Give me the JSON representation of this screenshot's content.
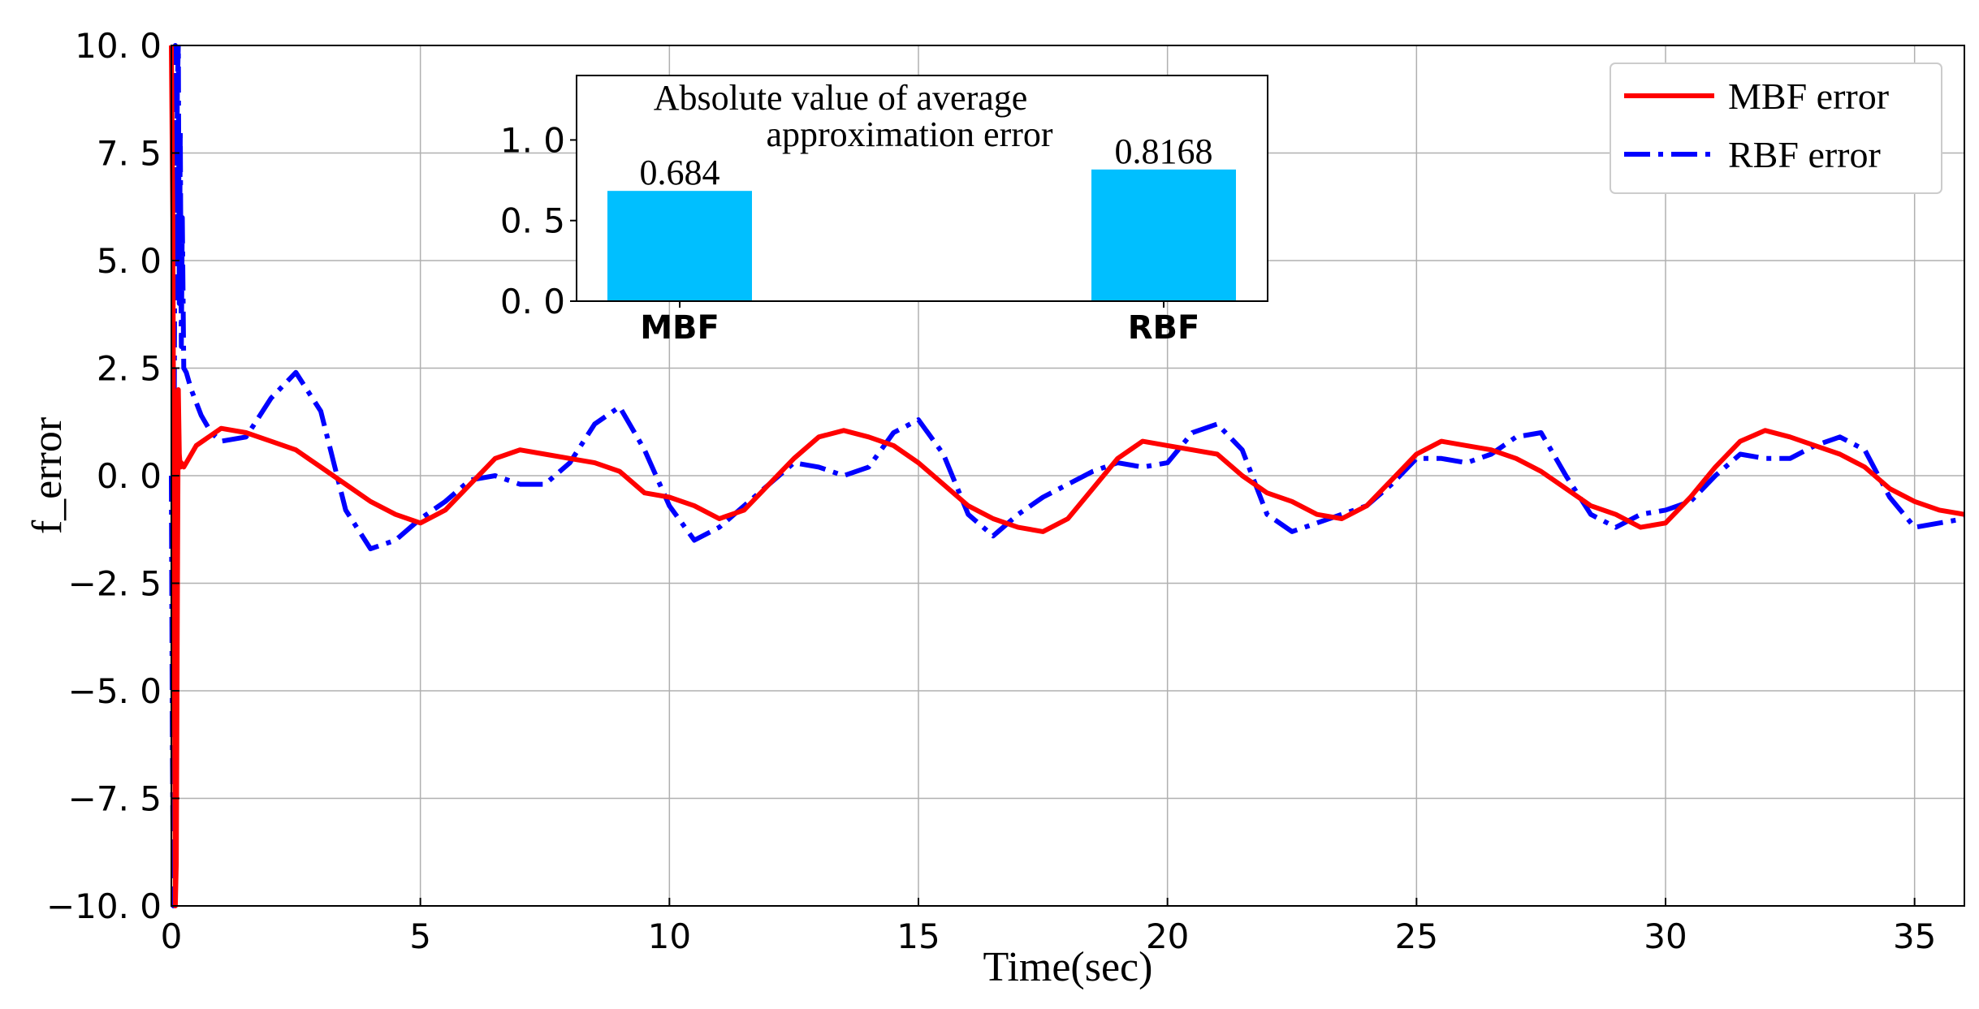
{
  "chart_data": [
    {
      "type": "line",
      "xlabel": "Time(sec)",
      "ylabel": "f_error",
      "xlim": [
        0,
        36
      ],
      "ylim": [
        -10,
        10
      ],
      "xticks": [
        0,
        5,
        10,
        15,
        20,
        25,
        30,
        35
      ],
      "xtick_labels": [
        "0",
        "5",
        "10",
        "15",
        "20",
        "25",
        "30",
        "35"
      ],
      "yticks": [
        -10,
        -7.5,
        -5,
        -2.5,
        0,
        2.5,
        5,
        7.5,
        10
      ],
      "ytick_labels": [
        "−10. 0",
        "−7. 5",
        "−5. 0",
        "−2. 5",
        "0. 0",
        "2. 5",
        "5. 0",
        "7. 5",
        "10. 0"
      ],
      "grid": true,
      "legend_position": "top-right",
      "series": [
        {
          "name": "MBF error",
          "color": "#ff0000",
          "style": "solid",
          "x": [
            0,
            0.03,
            0.06,
            0.08,
            0.1,
            0.12,
            0.14,
            0.16,
            0.18,
            0.2,
            0.25,
            0.3,
            0.5,
            1.0,
            1.5,
            2.0,
            2.5,
            3.0,
            3.5,
            4.0,
            4.5,
            5.0,
            5.5,
            6.0,
            6.5,
            7.0,
            7.5,
            8.0,
            8.5,
            9.0,
            9.5,
            10.0,
            10.5,
            11.0,
            11.5,
            12.0,
            12.5,
            13.0,
            13.5,
            14.0,
            14.5,
            15.0,
            15.5,
            16.0,
            16.5,
            17.0,
            17.5,
            18.0,
            18.5,
            19.0,
            19.5,
            20.0,
            20.5,
            21.0,
            21.5,
            22.0,
            22.5,
            23.0,
            23.5,
            24.0,
            24.5,
            25.0,
            25.5,
            26.0,
            26.5,
            27.0,
            27.5,
            28.0,
            28.5,
            29.0,
            29.5,
            30.0,
            30.5,
            31.0,
            31.5,
            32.0,
            32.5,
            33.0,
            33.5,
            34.0,
            34.5,
            35.0,
            35.5,
            36.0
          ],
          "y": [
            10,
            6,
            -4,
            -10,
            -9,
            -3,
            2,
            0.5,
            0.2,
            0.3,
            0.2,
            0.3,
            0.7,
            1.1,
            1.0,
            0.8,
            0.6,
            0.2,
            -0.2,
            -0.6,
            -0.9,
            -1.1,
            -0.8,
            -0.2,
            0.4,
            0.6,
            0.5,
            0.4,
            0.3,
            0.1,
            -0.4,
            -0.5,
            -0.7,
            -1.0,
            -0.8,
            -0.2,
            0.4,
            0.9,
            1.05,
            0.9,
            0.7,
            0.3,
            -0.2,
            -0.7,
            -1.0,
            -1.2,
            -1.3,
            -1.0,
            -0.3,
            0.4,
            0.8,
            0.7,
            0.6,
            0.5,
            0.0,
            -0.4,
            -0.6,
            -0.9,
            -1.0,
            -0.7,
            -0.1,
            0.5,
            0.8,
            0.7,
            0.6,
            0.4,
            0.1,
            -0.3,
            -0.7,
            -0.9,
            -1.2,
            -1.1,
            -0.5,
            0.2,
            0.8,
            1.05,
            0.9,
            0.7,
            0.5,
            0.2,
            -0.3,
            -0.6,
            -0.8,
            -0.9
          ]
        },
        {
          "name": "RBF error",
          "color": "#0000ff",
          "style": "dashdot",
          "x": [
            0,
            0.02,
            0.04,
            0.06,
            0.08,
            0.1,
            0.12,
            0.14,
            0.16,
            0.18,
            0.2,
            0.22,
            0.25,
            0.3,
            0.4,
            0.6,
            0.8,
            1.0,
            1.5,
            2.0,
            2.5,
            3.0,
            3.5,
            4.0,
            4.5,
            5.0,
            5.5,
            6.0,
            6.5,
            7.0,
            7.5,
            8.0,
            8.5,
            9.0,
            9.5,
            10.0,
            10.5,
            11.0,
            11.5,
            12.0,
            12.5,
            13.0,
            13.5,
            14.0,
            14.5,
            15.0,
            15.5,
            16.0,
            16.5,
            17.0,
            17.5,
            18.0,
            18.5,
            19.0,
            19.5,
            20.0,
            20.5,
            21.0,
            21.5,
            22.0,
            22.5,
            23.0,
            23.5,
            24.0,
            24.5,
            25.0,
            25.5,
            26.0,
            26.5,
            27.0,
            27.5,
            28.0,
            28.5,
            29.0,
            29.5,
            30.0,
            30.5,
            31.0,
            31.5,
            32.0,
            32.5,
            33.0,
            33.5,
            34.0,
            34.5,
            35.0,
            35.5,
            36.0
          ],
          "y": [
            0,
            -6,
            -10,
            2,
            10,
            5,
            9,
            10,
            4,
            8,
            3,
            6,
            2.5,
            2.4,
            2.0,
            1.4,
            1.0,
            0.8,
            0.9,
            1.8,
            2.4,
            1.5,
            -0.8,
            -1.7,
            -1.5,
            -1.0,
            -0.6,
            -0.1,
            0.0,
            -0.2,
            -0.2,
            0.3,
            1.2,
            1.6,
            0.6,
            -0.7,
            -1.5,
            -1.2,
            -0.7,
            -0.2,
            0.3,
            0.2,
            0.0,
            0.2,
            1.0,
            1.3,
            0.5,
            -0.9,
            -1.4,
            -0.9,
            -0.5,
            -0.2,
            0.1,
            0.3,
            0.2,
            0.3,
            1.0,
            1.2,
            0.6,
            -0.9,
            -1.3,
            -1.1,
            -0.9,
            -0.7,
            -0.2,
            0.4,
            0.4,
            0.3,
            0.5,
            0.9,
            1.0,
            0.0,
            -0.9,
            -1.2,
            -0.9,
            -0.8,
            -0.6,
            0.0,
            0.5,
            0.4,
            0.4,
            0.7,
            0.9,
            0.6,
            -0.5,
            -1.2,
            -1.1,
            -1.0
          ]
        }
      ]
    },
    {
      "type": "bar",
      "title_lines": [
        "Absolute value of average",
        "approximation error"
      ],
      "categories": [
        "MBF",
        "RBF"
      ],
      "values": [
        0.684,
        0.8168
      ],
      "value_labels": [
        "0.684",
        "0.8168"
      ],
      "color": "#00bfff",
      "ylim": [
        0,
        1.4
      ],
      "yticks": [
        0,
        0.5,
        1.0
      ],
      "ytick_labels": [
        "0. 0",
        "0. 5",
        "1. 0"
      ]
    }
  ]
}
